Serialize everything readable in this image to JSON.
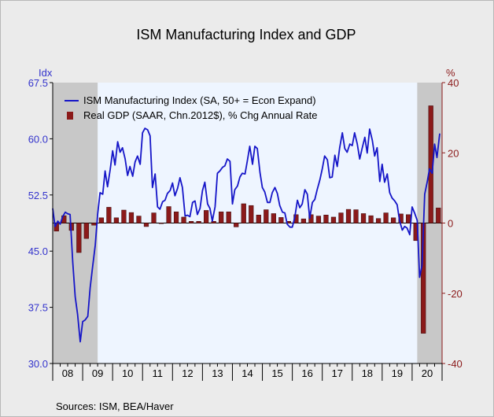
{
  "chart_data": {
    "type": "line",
    "title": "ISM Manufacturing Index and GDP",
    "left_axis": {
      "label": "Idx",
      "min": 30.0,
      "max": 67.5,
      "ticks": [
        "67.5",
        "60.0",
        "52.5",
        "45.0",
        "37.5",
        "30.0"
      ]
    },
    "right_axis": {
      "label": "%",
      "min": -40,
      "max": 40,
      "ticks": [
        "40",
        "20",
        "0",
        "-20",
        "-40"
      ]
    },
    "x_axis": {
      "start": 2008.0,
      "end": 2021.0,
      "ticks": [
        "08",
        "09",
        "10",
        "11",
        "12",
        "13",
        "14",
        "15",
        "16",
        "17",
        "18",
        "19",
        "20"
      ]
    },
    "recessions": [
      [
        2008.0,
        2009.5
      ],
      [
        2020.17,
        2021.0
      ]
    ],
    "legend_position": "top-left",
    "colors": {
      "line": "#1515c8",
      "bar": "#8b1a1a",
      "recession": "#c8c8c8",
      "plot_bg": "#eef5ff"
    },
    "series": [
      {
        "name": "ISM Manufacturing Index (SA, 50+ = Econ Expand)",
        "kind": "line",
        "axis": "left",
        "x": [
          2008.0,
          2008.08,
          2008.17,
          2008.25,
          2008.33,
          2008.42,
          2008.5,
          2008.58,
          2008.67,
          2008.75,
          2008.83,
          2008.92,
          2009.0,
          2009.08,
          2009.17,
          2009.25,
          2009.33,
          2009.42,
          2009.5,
          2009.58,
          2009.67,
          2009.75,
          2009.83,
          2009.92,
          2010.0,
          2010.08,
          2010.17,
          2010.25,
          2010.33,
          2010.42,
          2010.5,
          2010.58,
          2010.67,
          2010.75,
          2010.83,
          2010.92,
          2011.0,
          2011.08,
          2011.17,
          2011.25,
          2011.33,
          2011.42,
          2011.5,
          2011.58,
          2011.67,
          2011.75,
          2011.83,
          2011.92,
          2012.0,
          2012.08,
          2012.17,
          2012.25,
          2012.33,
          2012.42,
          2012.5,
          2012.58,
          2012.67,
          2012.75,
          2012.83,
          2012.92,
          2013.0,
          2013.08,
          2013.17,
          2013.25,
          2013.33,
          2013.42,
          2013.5,
          2013.58,
          2013.67,
          2013.75,
          2013.83,
          2013.92,
          2014.0,
          2014.08,
          2014.17,
          2014.25,
          2014.33,
          2014.42,
          2014.5,
          2014.58,
          2014.67,
          2014.75,
          2014.83,
          2014.92,
          2015.0,
          2015.08,
          2015.17,
          2015.25,
          2015.33,
          2015.42,
          2015.5,
          2015.58,
          2015.67,
          2015.75,
          2015.83,
          2015.92,
          2016.0,
          2016.08,
          2016.17,
          2016.25,
          2016.33,
          2016.42,
          2016.5,
          2016.58,
          2016.67,
          2016.75,
          2016.83,
          2016.92,
          2017.0,
          2017.08,
          2017.17,
          2017.25,
          2017.33,
          2017.42,
          2017.5,
          2017.58,
          2017.67,
          2017.75,
          2017.83,
          2017.92,
          2018.0,
          2018.08,
          2018.17,
          2018.25,
          2018.33,
          2018.42,
          2018.5,
          2018.58,
          2018.67,
          2018.75,
          2018.83,
          2018.92,
          2019.0,
          2019.08,
          2019.17,
          2019.25,
          2019.33,
          2019.42,
          2019.5,
          2019.58,
          2019.67,
          2019.75,
          2019.83,
          2019.92,
          2020.0,
          2020.08,
          2020.17,
          2020.25,
          2020.33,
          2020.42,
          2020.5,
          2020.58,
          2020.67,
          2020.75,
          2020.83,
          2020.92
        ],
        "values": [
          50.7,
          48.3,
          49.0,
          48.6,
          49.6,
          50.2,
          50.0,
          49.9,
          43.5,
          38.9,
          36.6,
          32.9,
          35.6,
          35.8,
          36.3,
          40.1,
          42.8,
          45.8,
          49.9,
          52.8,
          52.6,
          55.7,
          53.6,
          55.9,
          58.4,
          56.5,
          59.6,
          58.2,
          58.8,
          57.3,
          55.1,
          56.3,
          55.0,
          56.9,
          57.7,
          56.6,
          60.8,
          61.4,
          61.2,
          60.4,
          53.5,
          55.3,
          50.9,
          50.6,
          51.6,
          51.8,
          52.7,
          53.1,
          54.1,
          52.4,
          53.4,
          54.8,
          53.5,
          49.7,
          49.8,
          49.6,
          51.5,
          51.7,
          49.9,
          50.7,
          53.1,
          54.2,
          51.3,
          50.7,
          49.0,
          50.9,
          55.4,
          55.7,
          56.2,
          56.4,
          57.3,
          57.0,
          51.3,
          53.2,
          53.7,
          54.9,
          55.4,
          55.3,
          57.1,
          59.0,
          56.6,
          59.0,
          58.7,
          55.5,
          53.5,
          52.9,
          51.5,
          51.5,
          52.8,
          53.5,
          52.7,
          51.1,
          50.2,
          50.1,
          48.6,
          48.2,
          48.2,
          49.5,
          51.8,
          50.8,
          51.3,
          53.2,
          52.6,
          49.4,
          51.5,
          51.9,
          53.2,
          54.5,
          56.0,
          57.7,
          57.2,
          54.8,
          54.9,
          57.8,
          56.3,
          58.8,
          60.8,
          58.7,
          58.2,
          59.3,
          59.1,
          60.8,
          59.3,
          57.3,
          58.7,
          60.2,
          58.1,
          61.3,
          59.8,
          57.7,
          58.8,
          54.3,
          56.6,
          54.2,
          55.3,
          52.8,
          52.1,
          51.7,
          51.2,
          49.1,
          47.8,
          48.3,
          48.1,
          47.2,
          50.9,
          50.1,
          49.1,
          41.5,
          43.1,
          52.6,
          54.2,
          56.0,
          55.4,
          59.3,
          57.5,
          60.7
        ]
      },
      {
        "name": "Real GDP (SAAR, Chn.2012$), % Chg Annual Rate",
        "kind": "bar",
        "axis": "right",
        "x": [
          2008.125,
          2008.375,
          2008.625,
          2008.875,
          2009.125,
          2009.375,
          2009.625,
          2009.875,
          2010.125,
          2010.375,
          2010.625,
          2010.875,
          2011.125,
          2011.375,
          2011.625,
          2011.875,
          2012.125,
          2012.375,
          2012.625,
          2012.875,
          2013.125,
          2013.375,
          2013.625,
          2013.875,
          2014.125,
          2014.375,
          2014.625,
          2014.875,
          2015.125,
          2015.375,
          2015.625,
          2015.875,
          2016.125,
          2016.375,
          2016.625,
          2016.875,
          2017.125,
          2017.375,
          2017.625,
          2017.875,
          2018.125,
          2018.375,
          2018.625,
          2018.875,
          2019.125,
          2019.375,
          2019.625,
          2019.875,
          2020.125,
          2020.375,
          2020.625,
          2020.875
        ],
        "values": [
          -2.3,
          2.1,
          -2.1,
          -8.4,
          -4.4,
          -0.6,
          1.5,
          4.5,
          1.5,
          3.7,
          3.0,
          2.0,
          -1.0,
          2.9,
          -0.1,
          4.7,
          3.2,
          1.7,
          0.5,
          0.5,
          3.6,
          0.5,
          3.2,
          3.2,
          -1.1,
          5.5,
          5.0,
          2.3,
          3.8,
          2.7,
          1.6,
          0.5,
          2.4,
          1.2,
          2.4,
          2.0,
          2.3,
          1.7,
          2.9,
          3.9,
          3.8,
          2.7,
          2.1,
          1.3,
          2.9,
          1.5,
          2.6,
          2.4,
          -5.0,
          -31.4,
          33.4,
          4.3
        ]
      }
    ],
    "source": "Sources:  ISM, BEA/Haver"
  }
}
